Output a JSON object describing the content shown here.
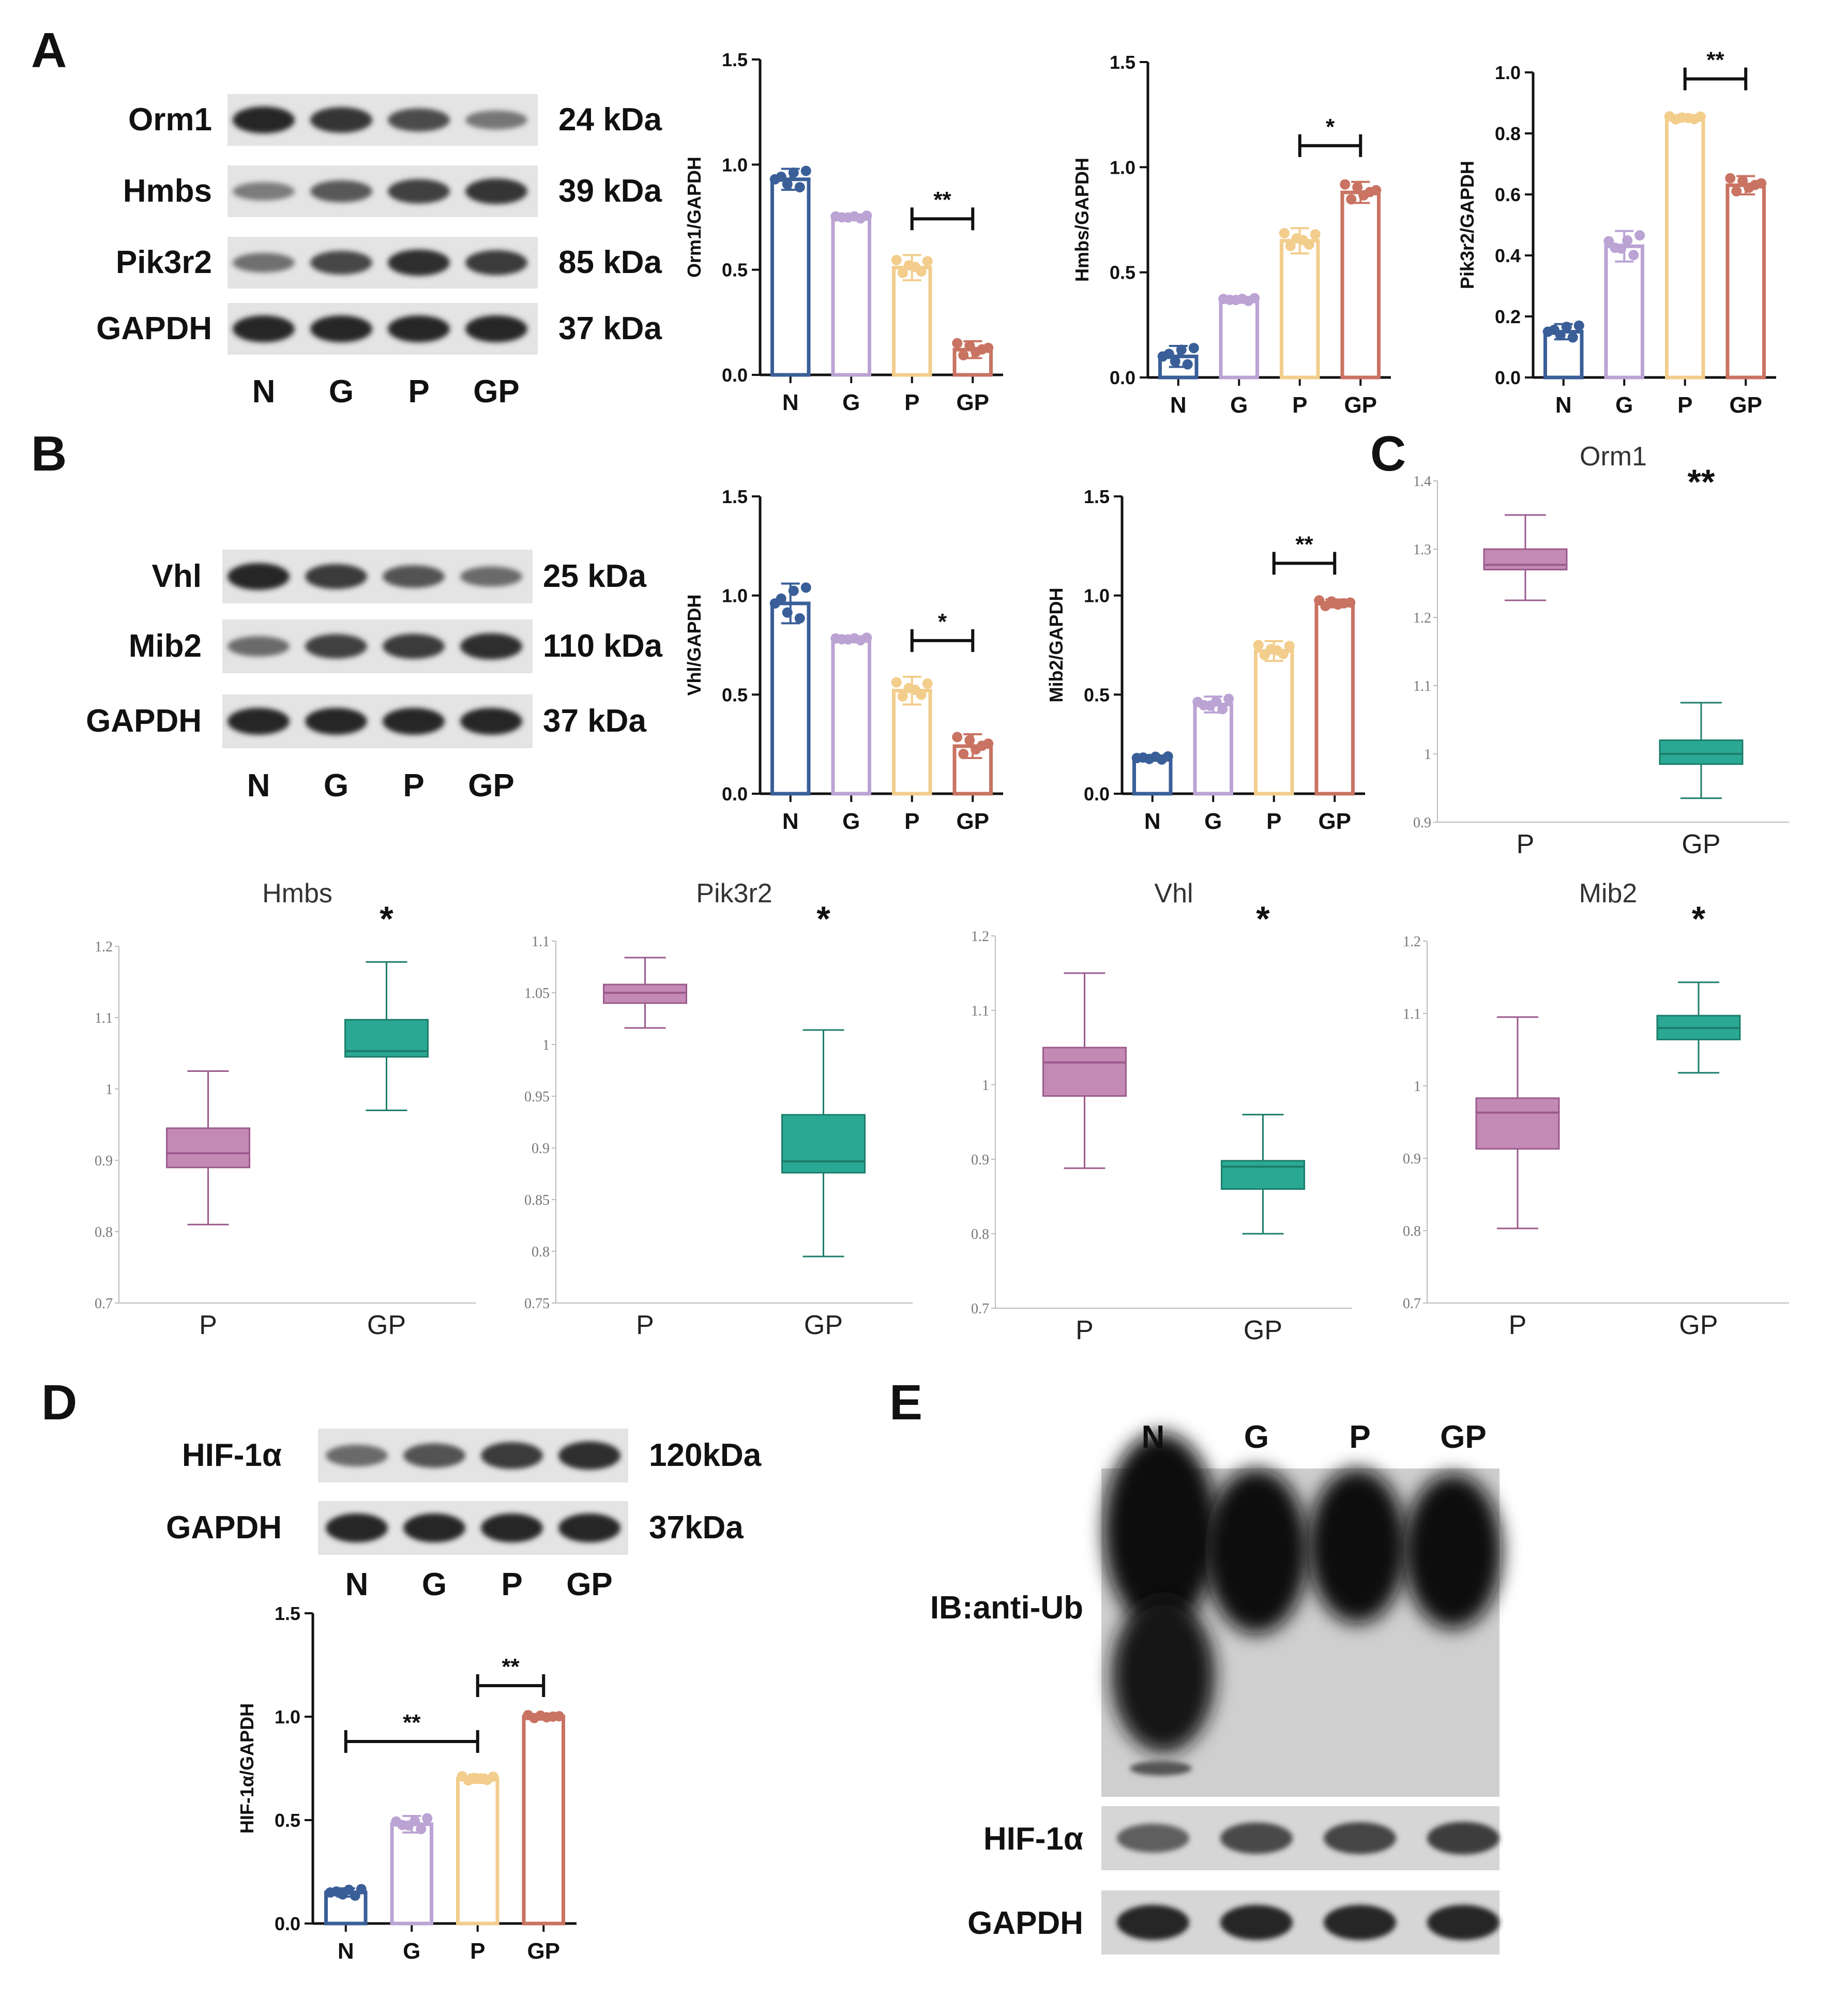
{
  "colors": {
    "N": "#3a5f98",
    "G": "#bba3d4",
    "P": "#f2cd8c",
    "GP": "#c97363",
    "boxP": "#c48ab6",
    "boxGP": "#2aa894",
    "boxPStroke": "#9b5a8d",
    "boxGPStroke": "#1c7d6b"
  },
  "panels": {
    "A": "A",
    "B": "B",
    "C": "C",
    "D": "D",
    "E": "E"
  },
  "blotA": {
    "rows": [
      {
        "name": "Orm1",
        "kda": "24 kDa",
        "intensity": [
          1.0,
          0.9,
          0.7,
          0.35
        ]
      },
      {
        "name": "Hmbs",
        "kda": "39 kDa",
        "intensity": [
          0.3,
          0.6,
          0.8,
          0.9
        ]
      },
      {
        "name": "Pik3r2",
        "kda": "85 kDa",
        "intensity": [
          0.4,
          0.75,
          0.95,
          0.85
        ]
      },
      {
        "name": "GAPDH",
        "kda": "37 kDa",
        "intensity": [
          1.0,
          1.0,
          1.0,
          1.0
        ]
      }
    ],
    "lanes": [
      "N",
      "G",
      "P",
      "GP"
    ]
  },
  "blotB": {
    "rows": [
      {
        "name": "Vhl",
        "kda": "25 kDa",
        "intensity": [
          1.0,
          0.85,
          0.65,
          0.45
        ]
      },
      {
        "name": "Mib2",
        "kda": "110 kDa",
        "intensity": [
          0.45,
          0.8,
          0.85,
          0.95
        ]
      },
      {
        "name": "GAPDH",
        "kda": "37 kDa",
        "intensity": [
          1.0,
          1.0,
          1.0,
          1.0
        ]
      }
    ],
    "lanes": [
      "N",
      "G",
      "P",
      "GP"
    ]
  },
  "blotD": {
    "rows": [
      {
        "name": "HIF-1α",
        "kda": "120kDa",
        "intensity": [
          0.45,
          0.65,
          0.85,
          0.95
        ]
      },
      {
        "name": "GAPDH",
        "kda": "37kDa",
        "intensity": [
          1.0,
          1.0,
          1.0,
          1.0
        ]
      }
    ],
    "lanes": [
      "N",
      "G",
      "P",
      "GP"
    ]
  },
  "blotE": {
    "lanes": [
      "N",
      "G",
      "P",
      "GP"
    ],
    "rows": [
      {
        "name": "IB:anti-Ub"
      },
      {
        "name": "HIF-1α",
        "intensity": [
          0.5,
          0.7,
          0.75,
          0.8
        ]
      },
      {
        "name": "GAPDH",
        "intensity": [
          1.0,
          1.0,
          1.0,
          1.0
        ]
      }
    ]
  },
  "chart_data": [
    {
      "id": "barOrm1",
      "type": "bar",
      "ylabel": "Orm1/GAPDH",
      "categories": [
        "N",
        "G",
        "P",
        "GP"
      ],
      "values": [
        0.93,
        0.75,
        0.51,
        0.12
      ],
      "errors": [
        0.05,
        0.01,
        0.06,
        0.04
      ],
      "ylim": [
        0,
        1.5
      ],
      "yticks": [
        "0.0",
        "0.5",
        "1.0",
        "1.5"
      ],
      "sig": [
        {
          "from": 2,
          "to": 3,
          "label": "**"
        }
      ]
    },
    {
      "id": "barHmbs",
      "type": "bar",
      "ylabel": "Hmbs/GAPDH",
      "categories": [
        "N",
        "G",
        "P",
        "GP"
      ],
      "values": [
        0.1,
        0.37,
        0.65,
        0.88
      ],
      "errors": [
        0.05,
        0.01,
        0.06,
        0.05
      ],
      "ylim": [
        0,
        1.5
      ],
      "yticks": [
        "0.0",
        "0.5",
        "1.0",
        "1.5"
      ],
      "sig": [
        {
          "from": 2,
          "to": 3,
          "label": "*"
        }
      ]
    },
    {
      "id": "barPik3r2",
      "type": "bar",
      "ylabel": "Pik3r2/GAPDH",
      "categories": [
        "N",
        "G",
        "P",
        "GP"
      ],
      "values": [
        0.15,
        0.43,
        0.85,
        0.63
      ],
      "errors": [
        0.025,
        0.05,
        0.01,
        0.03
      ],
      "ylim": [
        0,
        1.0
      ],
      "yticks": [
        "0.0",
        "0.2",
        "0.4",
        "0.6",
        "0.8",
        "1.0"
      ],
      "sig": [
        {
          "from": 2,
          "to": 3,
          "label": "**"
        }
      ]
    },
    {
      "id": "barVhl",
      "type": "bar",
      "ylabel": "Vhl/GAPDH",
      "categories": [
        "N",
        "G",
        "P",
        "GP"
      ],
      "values": [
        0.96,
        0.78,
        0.52,
        0.24
      ],
      "errors": [
        0.1,
        0.01,
        0.07,
        0.06
      ],
      "ylim": [
        0,
        1.5
      ],
      "yticks": [
        "0.0",
        "0.5",
        "1.0",
        "1.5"
      ],
      "sig": [
        {
          "from": 2,
          "to": 3,
          "label": "*"
        }
      ]
    },
    {
      "id": "barMib2",
      "type": "bar",
      "ylabel": "Mib2/GAPDH",
      "categories": [
        "N",
        "G",
        "P",
        "GP"
      ],
      "values": [
        0.18,
        0.45,
        0.72,
        0.96
      ],
      "errors": [
        0.01,
        0.04,
        0.05,
        0.02
      ],
      "ylim": [
        0,
        1.5
      ],
      "yticks": [
        "0.0",
        "0.5",
        "1.0",
        "1.5"
      ],
      "sig": [
        {
          "from": 2,
          "to": 3,
          "label": "**"
        }
      ]
    },
    {
      "id": "barHIF",
      "type": "bar",
      "ylabel": "HIF-1α/GAPDH",
      "categories": [
        "N",
        "G",
        "P",
        "GP"
      ],
      "values": [
        0.15,
        0.48,
        0.7,
        1.0
      ],
      "errors": [
        0.02,
        0.04,
        0.02,
        0.01
      ],
      "ylim": [
        0,
        1.5
      ],
      "yticks": [
        "0.0",
        "0.5",
        "1.0",
        "1.5"
      ],
      "sig": [
        {
          "from": 0,
          "to": 2,
          "label": "**"
        },
        {
          "from": 2,
          "to": 3,
          "label": "**"
        }
      ]
    },
    {
      "id": "boxOrm1",
      "type": "box",
      "title": "Orm1",
      "sig": "**",
      "categories": [
        "P",
        "GP"
      ],
      "ylim": [
        0.9,
        1.4
      ],
      "yticks": [
        "0.9",
        "1",
        "1.1",
        "1.2",
        "1.3",
        "1.4"
      ],
      "tickvals": [
        0.9,
        1.0,
        1.1,
        1.2,
        1.3,
        1.4
      ],
      "boxes": [
        {
          "min": 1.225,
          "q1": 1.27,
          "median": 1.277,
          "q3": 1.3,
          "max": 1.35
        },
        {
          "min": 0.935,
          "q1": 0.985,
          "median": 1.0,
          "q3": 1.02,
          "max": 1.075
        }
      ]
    },
    {
      "id": "boxHmbs",
      "type": "box",
      "title": "Hmbs",
      "sig": "*",
      "categories": [
        "P",
        "GP"
      ],
      "ylim": [
        0.7,
        1.2
      ],
      "yticks": [
        "0.7",
        "0.8",
        "0.9",
        "1",
        "1.1",
        "1.2"
      ],
      "tickvals": [
        0.7,
        0.8,
        0.9,
        1.0,
        1.1,
        1.2
      ],
      "boxes": [
        {
          "min": 0.81,
          "q1": 0.89,
          "median": 0.91,
          "q3": 0.945,
          "max": 1.025
        },
        {
          "min": 0.97,
          "q1": 1.045,
          "median": 1.053,
          "q3": 1.097,
          "max": 1.178
        }
      ]
    },
    {
      "id": "boxPik3r2",
      "type": "box",
      "title": "Pik3r2",
      "sig": "*",
      "categories": [
        "P",
        "GP"
      ],
      "ylim": [
        0.75,
        1.1
      ],
      "yticks": [
        "0.75",
        "0.8",
        "0.85",
        "0.9",
        "0.95",
        "1",
        "1.05",
        "1.1"
      ],
      "tickvals": [
        0.75,
        0.8,
        0.85,
        0.9,
        0.95,
        1.0,
        1.05,
        1.1
      ],
      "boxes": [
        {
          "min": 1.016,
          "q1": 1.04,
          "median": 1.05,
          "q3": 1.058,
          "max": 1.084
        },
        {
          "min": 0.795,
          "q1": 0.876,
          "median": 0.887,
          "q3": 0.932,
          "max": 1.014
        }
      ]
    },
    {
      "id": "boxVhl",
      "type": "box",
      "title": "Vhl",
      "sig": "*",
      "categories": [
        "P",
        "GP"
      ],
      "ylim": [
        0.7,
        1.2
      ],
      "yticks": [
        "0.7",
        "0.8",
        "0.9",
        "1",
        "1.1",
        "1.2"
      ],
      "tickvals": [
        0.7,
        0.8,
        0.9,
        1.0,
        1.1,
        1.2
      ],
      "boxes": [
        {
          "min": 0.888,
          "q1": 0.985,
          "median": 1.03,
          "q3": 1.05,
          "max": 1.15
        },
        {
          "min": 0.8,
          "q1": 0.86,
          "median": 0.89,
          "q3": 0.898,
          "max": 0.96
        }
      ]
    },
    {
      "id": "boxMib2",
      "type": "box",
      "title": "Mib2",
      "sig": "*",
      "categories": [
        "P",
        "GP"
      ],
      "ylim": [
        0.7,
        1.2
      ],
      "yticks": [
        "0.7",
        "0.8",
        "0.9",
        "1",
        "1.1",
        "1.2"
      ],
      "tickvals": [
        0.7,
        0.8,
        0.9,
        1.0,
        1.1,
        1.2
      ],
      "boxes": [
        {
          "min": 0.803,
          "q1": 0.913,
          "median": 0.963,
          "q3": 0.983,
          "max": 1.095
        },
        {
          "min": 1.018,
          "q1": 1.064,
          "median": 1.08,
          "q3": 1.097,
          "max": 1.143
        }
      ]
    }
  ]
}
